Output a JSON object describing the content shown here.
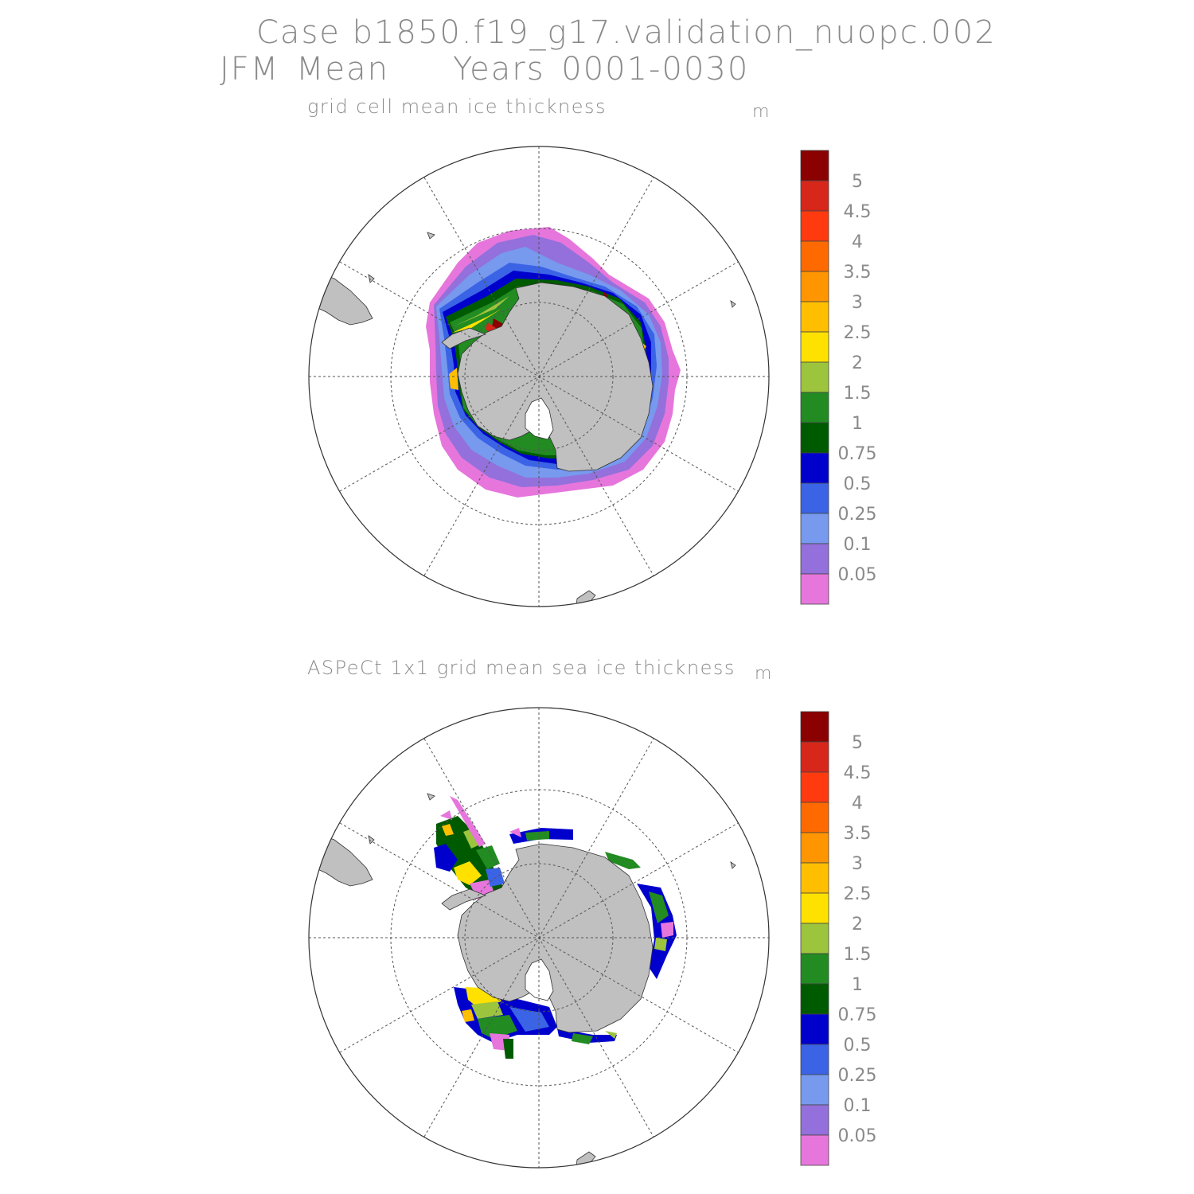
{
  "header": {
    "case_line": "Case b1850.f19_g17.validation_nuopc.002",
    "season": "JFM Mean",
    "years": "Years 0001-0030"
  },
  "panels": [
    {
      "title": "grid cell mean ice thickness",
      "unit": "m"
    },
    {
      "title": "ASPeCt 1x1 grid mean sea ice thickness",
      "unit": "m"
    }
  ],
  "colorbar": {
    "labels": [
      "5",
      "4.5",
      "4",
      "3.5",
      "3",
      "2.5",
      "2",
      "1.5",
      "1",
      "0.75",
      "0.5",
      "0.25",
      "0.1",
      "0.05"
    ],
    "colors_top_to_bottom": [
      "#8b0000",
      "#d7261a",
      "#ff3a0e",
      "#ff6a00",
      "#ff9500",
      "#ffbf00",
      "#ffe100",
      "#9cc43c",
      "#228b22",
      "#005a00",
      "#0000cd",
      "#3a63e6",
      "#7799ee",
      "#9370db",
      "#e676dc"
    ]
  },
  "colors": {
    "land": "#c0c0c0",
    "grid": "#555555"
  }
}
